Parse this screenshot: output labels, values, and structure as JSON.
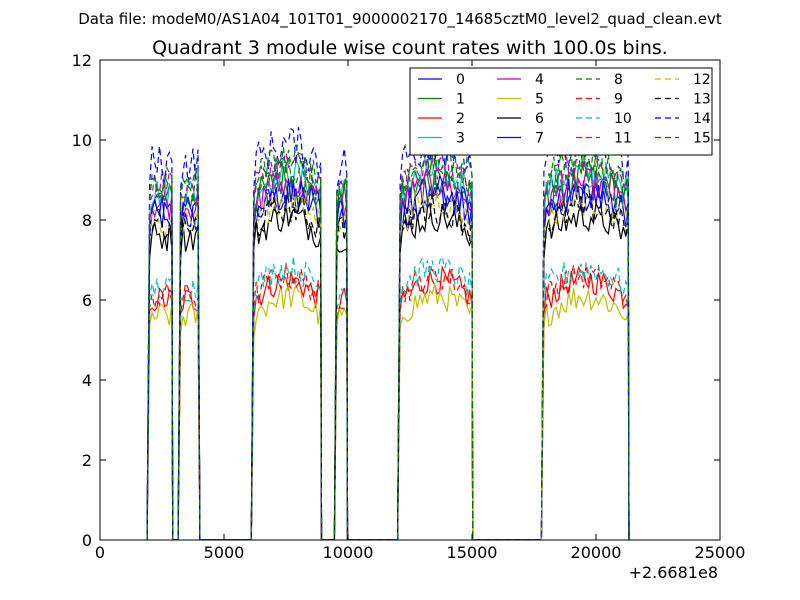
{
  "suptitle": "Data file: modeM0/AS1A04_101T01_9000002170_14685cztM0_level2_quad_clean.evt",
  "chart_data": {
    "type": "line",
    "title": "Quadrant 3 module wise count rates with 100.0s bins.",
    "xlabel": "",
    "ylabel": "",
    "x_offset_text": "+2.6681e8",
    "xlim": [
      0,
      25000
    ],
    "ylim": [
      0,
      12
    ],
    "x_ticks": [
      0,
      5000,
      10000,
      15000,
      20000,
      25000
    ],
    "y_ticks": [
      0,
      2,
      4,
      6,
      8,
      10,
      12
    ],
    "grid": false,
    "legend": {
      "placement": "top-right",
      "columns": 4
    },
    "bin_seconds": 100,
    "segments": [
      {
        "start": 2000,
        "end": 2900
      },
      {
        "start": 3250,
        "end": 4000
      },
      {
        "start": 6200,
        "end": 8900
      },
      {
        "start": 9550,
        "end": 9950
      },
      {
        "start": 12100,
        "end": 15000
      },
      {
        "start": 17900,
        "end": 21300
      }
    ],
    "series": [
      {
        "name": "0",
        "color": "#0000ff",
        "dash": "solid",
        "level": 8.1,
        "noise": 0.45
      },
      {
        "name": "1",
        "color": "#008000",
        "dash": "solid",
        "level": 8.5,
        "noise": 0.45
      },
      {
        "name": "2",
        "color": "#ff0000",
        "dash": "solid",
        "level": 6.0,
        "noise": 0.35
      },
      {
        "name": "3",
        "color": "#00bfbf",
        "dash": "solid",
        "level": 8.7,
        "noise": 0.4
      },
      {
        "name": "4",
        "color": "#bf00bf",
        "dash": "solid",
        "level": 8.4,
        "noise": 0.4
      },
      {
        "name": "5",
        "color": "#bfbf00",
        "dash": "solid",
        "level": 5.6,
        "noise": 0.35
      },
      {
        "name": "6",
        "color": "#000000",
        "dash": "solid",
        "level": 7.6,
        "noise": 0.4
      },
      {
        "name": "7",
        "color": "#0000ff",
        "dash": "solid",
        "level": 8.2,
        "noise": 0.45
      },
      {
        "name": "8",
        "color": "#008000",
        "dash": "dashed",
        "level": 8.8,
        "noise": 0.45
      },
      {
        "name": "9",
        "color": "#ff0000",
        "dash": "dashed",
        "level": 6.1,
        "noise": 0.35
      },
      {
        "name": "10",
        "color": "#00bfbf",
        "dash": "dashed",
        "level": 6.3,
        "noise": 0.35
      },
      {
        "name": "11",
        "color": "#bf00bf",
        "dash": "dashed",
        "level": 8.9,
        "noise": 0.4
      },
      {
        "name": "12",
        "color": "#bfbf00",
        "dash": "dashed",
        "level": 8.0,
        "noise": 0.4
      },
      {
        "name": "13",
        "color": "#000000",
        "dash": "dashed",
        "level": 7.8,
        "noise": 0.4
      },
      {
        "name": "14",
        "color": "#0000ff",
        "dash": "dashed",
        "level": 9.4,
        "noise": 0.5
      },
      {
        "name": "15",
        "color": "#008000",
        "dash": "dashed",
        "level": 9.0,
        "noise": 0.45
      }
    ]
  }
}
